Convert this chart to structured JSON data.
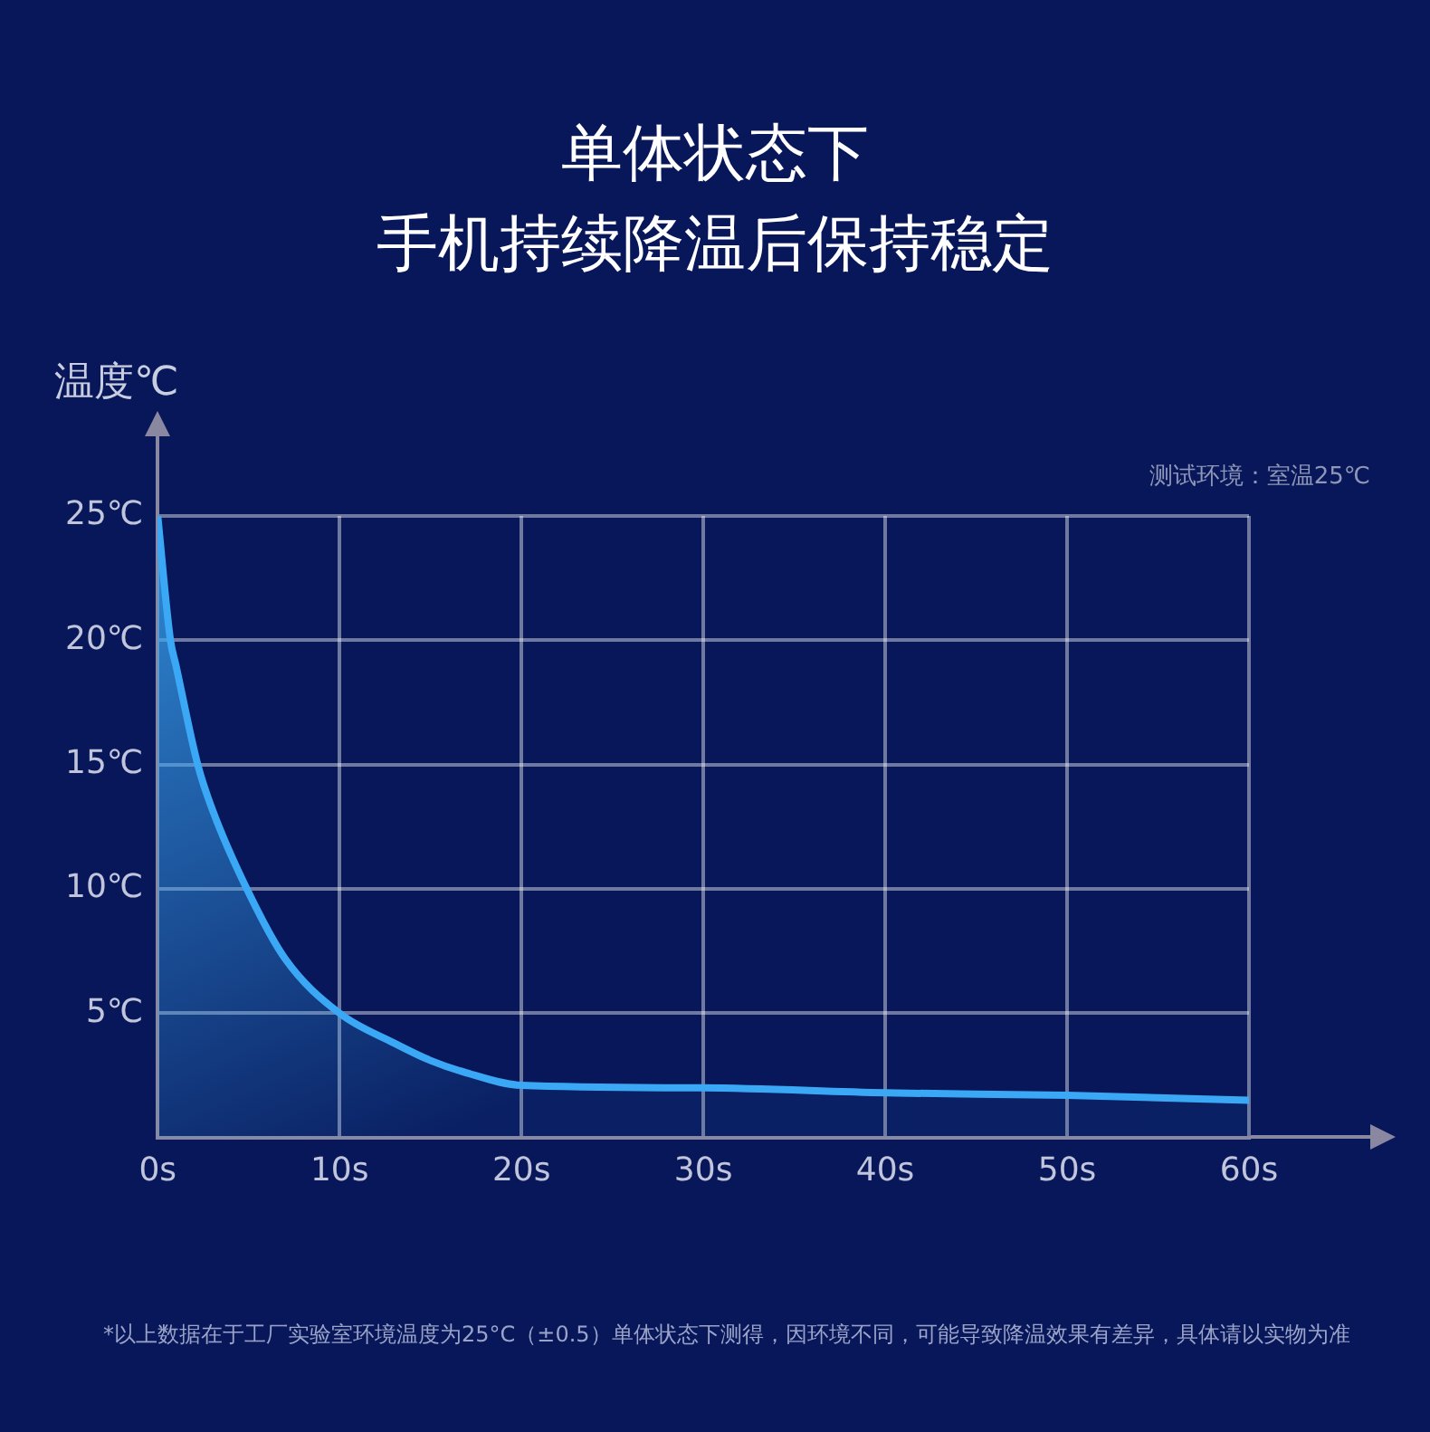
{
  "chart_data": {
    "type": "area",
    "title": "单体状态下",
    "subtitle": "手机持续降温后保持稳定",
    "ylabel": "温度℃",
    "annotations": [
      "测试环境：室温25℃",
      "*以上数据在于工厂实验室环境温度为25°C（±0.5）单体状态下测得，因环境不同，可能导致降温效果有差异，具体请以实物为准"
    ],
    "x": [
      0,
      0.7,
      1,
      2.2,
      3,
      4.9,
      7,
      10,
      13,
      15,
      17,
      20,
      30,
      40,
      50,
      60
    ],
    "series": [
      {
        "color": "#3aa8f5",
        "values": [
          25,
          20,
          19,
          15,
          13.2,
          10,
          7.2,
          5,
          3.8,
          3.1,
          2.6,
          2.1,
          2.0,
          1.8,
          1.7,
          1.5
        ]
      }
    ],
    "xlim": [
      0,
      60
    ],
    "ylim": [
      0,
      25
    ],
    "xticks": [
      {
        "value": 0,
        "label": "0s"
      },
      {
        "value": 10,
        "label": "10s"
      },
      {
        "value": 20,
        "label": "20s"
      },
      {
        "value": 30,
        "label": "30s"
      },
      {
        "value": 40,
        "label": "40s"
      },
      {
        "value": 50,
        "label": "50s"
      },
      {
        "value": 60,
        "label": "60s"
      }
    ],
    "yticks": [
      {
        "value": 0,
        "label": null
      },
      {
        "value": 5,
        "label": "5℃"
      },
      {
        "value": 10,
        "label": "10℃"
      },
      {
        "value": 15,
        "label": "15℃"
      },
      {
        "value": 20,
        "label": "20℃"
      },
      {
        "value": 25,
        "label": "25℃"
      }
    ],
    "grid": true,
    "marker": "none",
    "line_style": "solid"
  }
}
